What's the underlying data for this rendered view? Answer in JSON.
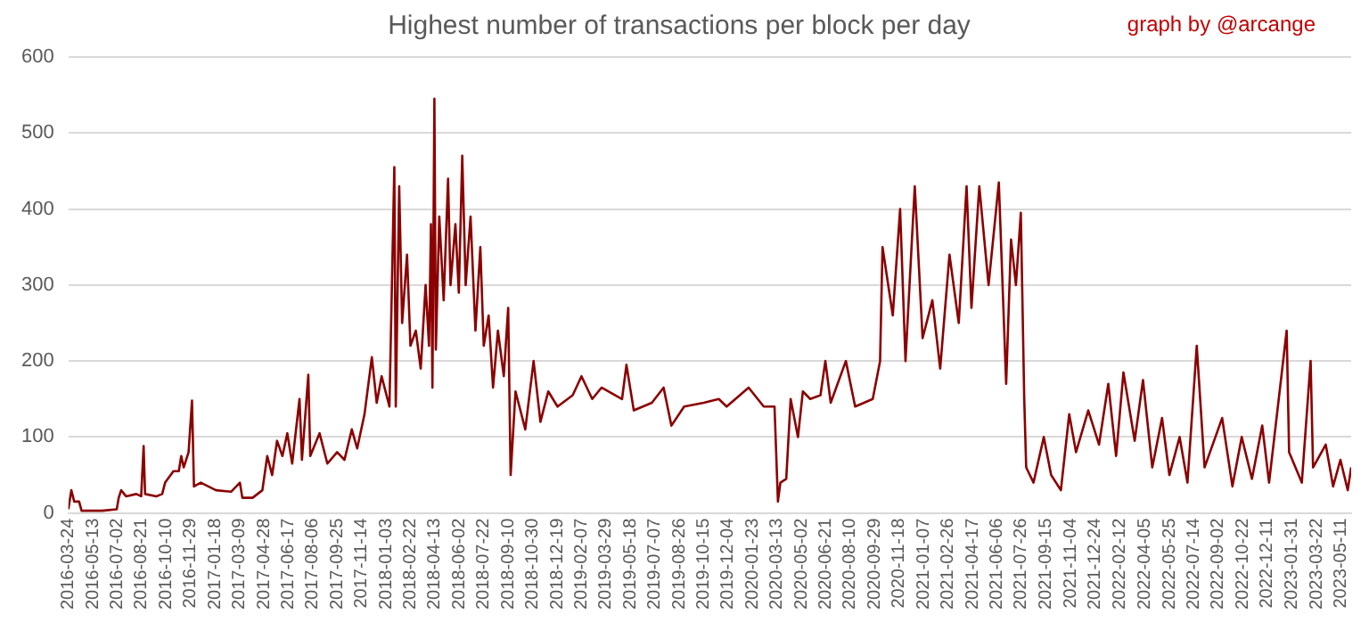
{
  "chart_data": {
    "type": "line",
    "title": "Highest number of transactions per block per day",
    "annotations": [
      "graph by @arcange"
    ],
    "ylim": [
      0,
      600
    ],
    "yticks": [
      0,
      100,
      200,
      300,
      400,
      500,
      600
    ],
    "grid": "y",
    "legend": false,
    "marker": "none",
    "line_style": "solid",
    "xlim": [
      "2016-03-24",
      "2023-06-01"
    ],
    "xticks": [
      "2016-03-24",
      "2016-05-13",
      "2016-07-02",
      "2016-08-21",
      "2016-10-10",
      "2016-11-29",
      "2017-01-18",
      "2017-03-09",
      "2017-04-28",
      "2017-06-17",
      "2017-08-06",
      "2017-09-25",
      "2017-11-14",
      "2018-01-03",
      "2018-02-22",
      "2018-04-13",
      "2018-06-02",
      "2018-07-22",
      "2018-09-10",
      "2018-10-30",
      "2018-12-19",
      "2019-02-07",
      "2019-03-29",
      "2019-05-18",
      "2019-07-07",
      "2019-08-26",
      "2019-10-15",
      "2019-12-04",
      "2020-01-23",
      "2020-03-13",
      "2020-05-02",
      "2020-06-21",
      "2020-08-10",
      "2020-09-29",
      "2020-11-18",
      "2021-01-07",
      "2021-02-26",
      "2021-04-17",
      "2021-06-06",
      "2021-07-26",
      "2021-09-15",
      "2021-11-04",
      "2021-12-24",
      "2022-02-12",
      "2022-04-05",
      "2022-05-25",
      "2022-07-14",
      "2022-09-02",
      "2022-10-22",
      "2022-12-11",
      "2023-01-31",
      "2023-03-22",
      "2023-05-11"
    ],
    "x": [
      "2016-03-24",
      "2016-03-30",
      "2016-04-05",
      "2016-04-15",
      "2016-04-20",
      "2016-06-01",
      "2016-07-01",
      "2016-07-05",
      "2016-07-10",
      "2016-07-20",
      "2016-08-10",
      "2016-08-20",
      "2016-08-25",
      "2016-08-28",
      "2016-09-20",
      "2016-10-02",
      "2016-10-08",
      "2016-10-25",
      "2016-11-05",
      "2016-11-10",
      "2016-11-15",
      "2016-11-25",
      "2016-12-02",
      "2016-12-06",
      "2016-12-20",
      "2017-01-20",
      "2017-02-20",
      "2017-03-10",
      "2017-03-15",
      "2017-04-05",
      "2017-04-25",
      "2017-05-05",
      "2017-05-15",
      "2017-05-25",
      "2017-06-05",
      "2017-06-15",
      "2017-06-25",
      "2017-07-10",
      "2017-07-15",
      "2017-07-28",
      "2017-08-01",
      "2017-08-20",
      "2017-09-05",
      "2017-09-25",
      "2017-10-10",
      "2017-10-25",
      "2017-11-05",
      "2017-11-20",
      "2017-12-05",
      "2017-12-15",
      "2017-12-25",
      "2018-01-10",
      "2018-01-20",
      "2018-01-23",
      "2018-01-30",
      "2018-02-05",
      "2018-02-15",
      "2018-02-22",
      "2018-03-05",
      "2018-03-15",
      "2018-03-25",
      "2018-04-01",
      "2018-04-05",
      "2018-04-08",
      "2018-04-12",
      "2018-04-15",
      "2018-04-22",
      "2018-05-01",
      "2018-05-10",
      "2018-05-15",
      "2018-05-25",
      "2018-06-01",
      "2018-06-08",
      "2018-06-15",
      "2018-06-25",
      "2018-07-05",
      "2018-07-15",
      "2018-07-22",
      "2018-08-01",
      "2018-08-10",
      "2018-08-20",
      "2018-09-01",
      "2018-09-10",
      "2018-09-15",
      "2018-09-25",
      "2018-10-15",
      "2018-11-01",
      "2018-11-15",
      "2018-12-01",
      "2018-12-20",
      "2019-01-20",
      "2019-02-07",
      "2019-03-01",
      "2019-03-20",
      "2019-05-01",
      "2019-05-10",
      "2019-05-25",
      "2019-07-01",
      "2019-07-25",
      "2019-08-10",
      "2019-09-05",
      "2019-10-15",
      "2019-11-15",
      "2019-12-01",
      "2020-01-15",
      "2020-02-15",
      "2020-03-08",
      "2020-03-15",
      "2020-03-20",
      "2020-04-01",
      "2020-04-10",
      "2020-04-25",
      "2020-05-05",
      "2020-05-20",
      "2020-06-10",
      "2020-06-20",
      "2020-07-01",
      "2020-08-01",
      "2020-08-20",
      "2020-09-25",
      "2020-10-10",
      "2020-10-15",
      "2020-11-05",
      "2020-11-20",
      "2020-12-01",
      "2020-12-20",
      "2021-01-05",
      "2021-01-25",
      "2021-02-10",
      "2021-03-01",
      "2021-03-20",
      "2021-04-05",
      "2021-04-15",
      "2021-05-01",
      "2021-05-20",
      "2021-06-10",
      "2021-06-25",
      "2021-07-05",
      "2021-07-15",
      "2021-07-25",
      "2021-08-01",
      "2021-08-05",
      "2021-08-20",
      "2021-09-10",
      "2021-09-25",
      "2021-10-15",
      "2021-11-01",
      "2021-11-15",
      "2021-12-10",
      "2022-01-01",
      "2022-01-20",
      "2022-02-05",
      "2022-02-20",
      "2022-03-15",
      "2022-04-01",
      "2022-04-20",
      "2022-05-10",
      "2022-05-25",
      "2022-06-15",
      "2022-07-01",
      "2022-07-20",
      "2022-08-05",
      "2022-09-10",
      "2022-10-01",
      "2022-10-20",
      "2022-11-10",
      "2022-12-01",
      "2022-12-15",
      "2023-01-20",
      "2023-01-25",
      "2023-02-20",
      "2023-03-10",
      "2023-03-15",
      "2023-04-10",
      "2023-04-25",
      "2023-05-10",
      "2023-05-25",
      "2023-06-01"
    ],
    "series": [
      {
        "color": "#8b0000",
        "values": [
          5,
          30,
          15,
          15,
          3,
          3,
          5,
          20,
          30,
          22,
          25,
          22,
          88,
          25,
          22,
          25,
          40,
          55,
          55,
          75,
          60,
          80,
          148,
          35,
          40,
          30,
          28,
          40,
          20,
          20,
          30,
          75,
          50,
          95,
          75,
          105,
          65,
          150,
          70,
          182,
          75,
          105,
          65,
          80,
          70,
          110,
          85,
          130,
          205,
          145,
          180,
          140,
          455,
          140,
          430,
          250,
          340,
          220,
          240,
          190,
          300,
          220,
          380,
          165,
          545,
          215,
          390,
          280,
          440,
          300,
          380,
          290,
          470,
          300,
          390,
          240,
          350,
          220,
          260,
          165,
          240,
          180,
          270,
          50,
          160,
          110,
          200,
          120,
          160,
          140,
          155,
          180,
          150,
          165,
          150,
          195,
          135,
          145,
          165,
          115,
          140,
          145,
          150,
          140,
          165,
          140,
          140,
          15,
          40,
          45,
          150,
          100,
          160,
          150,
          155,
          200,
          145,
          200,
          140,
          150,
          200,
          350,
          260,
          400,
          200,
          430,
          230,
          280,
          190,
          340,
          250,
          430,
          270,
          430,
          300,
          435,
          170,
          360,
          300,
          395,
          150,
          60,
          40,
          100,
          50,
          30,
          130,
          80,
          135,
          90,
          170,
          75,
          185,
          95,
          175,
          60,
          125,
          50,
          100,
          40,
          220,
          60,
          125,
          35,
          100,
          45,
          115,
          40,
          240,
          80,
          40,
          200,
          60,
          90,
          35,
          70,
          30,
          60
        ]
      }
    ]
  }
}
